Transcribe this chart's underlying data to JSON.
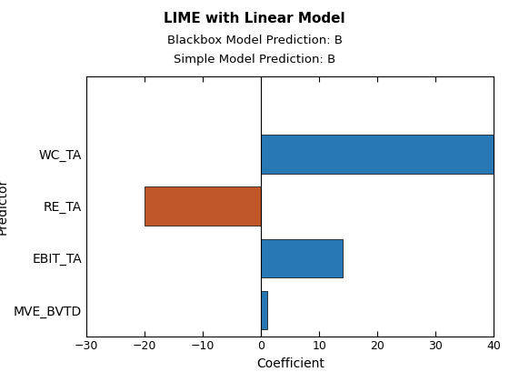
{
  "title": "LIME with Linear Model",
  "subtitle1": "Blackbox Model Prediction: B",
  "subtitle2": "Simple Model Prediction: B",
  "xlabel": "Coefficient",
  "ylabel": "Predictor",
  "categories": [
    "MVE_BVTD",
    "EBIT_TA",
    "RE_TA",
    "WC_TA"
  ],
  "values": [
    1.0,
    14.0,
    -20.0,
    40.0
  ],
  "colors": [
    "#2878b5",
    "#2878b5",
    "#c0562a",
    "#2878b5"
  ],
  "xlim": [
    -30,
    40
  ],
  "xticks": [
    -30,
    -20,
    -10,
    0,
    10,
    20,
    30,
    40
  ],
  "ylim": [
    -0.5,
    4.5
  ],
  "background_color": "#ffffff",
  "title_fontsize": 11,
  "subtitle_fontsize": 9.5,
  "label_fontsize": 10,
  "tick_fontsize": 9
}
